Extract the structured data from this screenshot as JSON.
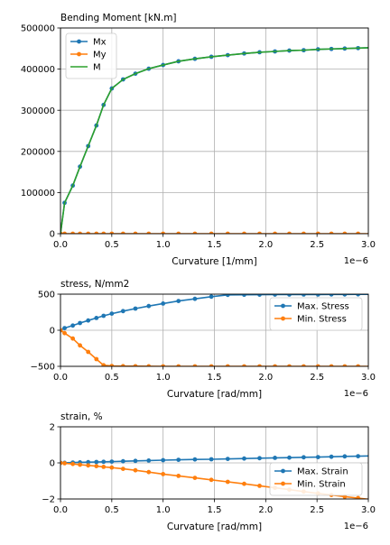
{
  "chart_data": [
    {
      "type": "line",
      "title": "Bending Moment [kN.m]",
      "xlabel": "Curvature [1/mm]",
      "ylabel": "",
      "x_offset_label": "1e−6",
      "xlim": [
        0,
        3.0
      ],
      "ylim": [
        0,
        500000
      ],
      "xticks": [
        0.0,
        0.5,
        1.0,
        1.5,
        2.0,
        2.5,
        3.0
      ],
      "xtick_labels": [
        "0.0",
        "0.5",
        "1.0",
        "1.5",
        "2.0",
        "2.5",
        "3.0"
      ],
      "yticks": [
        0,
        100000,
        200000,
        300000,
        400000,
        500000
      ],
      "ytick_labels": [
        "0",
        "100000",
        "200000",
        "300000",
        "400000",
        "500000"
      ],
      "grid": true,
      "legend": "top-left",
      "series": [
        {
          "name": "Mx",
          "color": "#1f77b4",
          "marker": true,
          "x": [
            0.0,
            0.04,
            0.12,
            0.19,
            0.27,
            0.35,
            0.42,
            0.5,
            0.61,
            0.73,
            0.86,
            1.0,
            1.15,
            1.31,
            1.47,
            1.63,
            1.79,
            1.94,
            2.09,
            2.23,
            2.37,
            2.51,
            2.64,
            2.77,
            2.9,
            3.02
          ],
          "y": [
            0,
            75000,
            117000,
            163000,
            213000,
            263000,
            313000,
            353000,
            375000,
            389000,
            401000,
            410000,
            419000,
            425000,
            430000,
            434000,
            438000,
            441000,
            443000,
            445000,
            446000,
            448000,
            449000,
            450000,
            451000,
            452000
          ]
        },
        {
          "name": "My",
          "color": "#ff7f0e",
          "marker": true,
          "x": [
            0.0,
            0.04,
            0.12,
            0.19,
            0.27,
            0.35,
            0.42,
            0.5,
            0.61,
            0.73,
            0.86,
            1.0,
            1.15,
            1.31,
            1.47,
            1.63,
            1.79,
            1.94,
            2.09,
            2.23,
            2.37,
            2.51,
            2.64,
            2.77,
            2.9,
            3.02
          ],
          "y": [
            0,
            0,
            0,
            0,
            0,
            0,
            0,
            0,
            0,
            0,
            0,
            0,
            0,
            0,
            0,
            0,
            0,
            0,
            0,
            0,
            0,
            0,
            0,
            0,
            0,
            0
          ]
        },
        {
          "name": "M",
          "color": "#2ca02c",
          "marker": false,
          "x": [
            0.0,
            0.04,
            0.12,
            0.19,
            0.27,
            0.35,
            0.42,
            0.5,
            0.61,
            0.73,
            0.86,
            1.0,
            1.15,
            1.31,
            1.47,
            1.63,
            1.79,
            1.94,
            2.09,
            2.23,
            2.37,
            2.51,
            2.64,
            2.77,
            2.9,
            3.02
          ],
          "y": [
            0,
            75000,
            117000,
            163000,
            213000,
            263000,
            313000,
            353000,
            375000,
            389000,
            401000,
            410000,
            419000,
            425000,
            430000,
            434000,
            438000,
            441000,
            443000,
            445000,
            446000,
            448000,
            449000,
            450000,
            451000,
            452000
          ]
        }
      ]
    },
    {
      "type": "line",
      "title": "stress, N/mm2",
      "xlabel": "Curvature [rad/mm]",
      "ylabel": "",
      "x_offset_label": "1e−6",
      "xlim": [
        0,
        3.0
      ],
      "ylim": [
        -500,
        500
      ],
      "xticks": [
        0.0,
        0.5,
        1.0,
        1.5,
        2.0,
        2.5,
        3.0
      ],
      "xtick_labels": [
        "0.0",
        "0.5",
        "1.0",
        "1.5",
        "2.0",
        "2.5",
        "3.0"
      ],
      "yticks": [
        -500,
        0,
        500
      ],
      "ytick_labels": [
        "−500",
        "0",
        "500"
      ],
      "grid": true,
      "legend": "right",
      "series": [
        {
          "name": "Max. Stress",
          "color": "#1f77b4",
          "marker": true,
          "x": [
            0.0,
            0.04,
            0.12,
            0.19,
            0.27,
            0.35,
            0.42,
            0.5,
            0.61,
            0.73,
            0.86,
            1.0,
            1.15,
            1.31,
            1.47,
            1.63,
            1.79,
            1.94,
            2.09,
            2.23,
            2.37,
            2.51,
            2.64,
            2.77,
            2.9,
            3.02
          ],
          "y": [
            0,
            30,
            65,
            100,
            135,
            170,
            200,
            230,
            265,
            300,
            335,
            370,
            405,
            435,
            465,
            490,
            492,
            493,
            494,
            494,
            495,
            495,
            496,
            496,
            497,
            497
          ]
        },
        {
          "name": "Min. Stress",
          "color": "#ff7f0e",
          "marker": true,
          "x": [
            0.0,
            0.04,
            0.12,
            0.19,
            0.27,
            0.35,
            0.42,
            0.5,
            0.61,
            0.73,
            0.86,
            1.0,
            1.15,
            1.31,
            1.47,
            1.63,
            1.79,
            1.94,
            2.09,
            2.23,
            2.37,
            2.51,
            2.64,
            2.77,
            2.9,
            3.02
          ],
          "y": [
            0,
            -40,
            -115,
            -210,
            -300,
            -400,
            -485,
            -495,
            -497,
            -498,
            -499,
            -500,
            -500,
            -500,
            -500,
            -500,
            -500,
            -500,
            -500,
            -500,
            -500,
            -500,
            -500,
            -500,
            -500,
            -500
          ]
        }
      ]
    },
    {
      "type": "line",
      "title": "strain, %",
      "xlabel": "Curvature [rad/mm]",
      "ylabel": "",
      "x_offset_label": "1e−6",
      "xlim": [
        0,
        3.0
      ],
      "ylim": [
        -2,
        2
      ],
      "xticks": [
        0.0,
        0.5,
        1.0,
        1.5,
        2.0,
        2.5,
        3.0
      ],
      "xtick_labels": [
        "0.0",
        "0.5",
        "1.0",
        "1.5",
        "2.0",
        "2.5",
        "3.0"
      ],
      "yticks": [
        -2,
        0,
        2
      ],
      "ytick_labels": [
        "−2",
        "0",
        "2"
      ],
      "grid": true,
      "legend": "bottom-right",
      "series": [
        {
          "name": "Max. Strain",
          "color": "#1f77b4",
          "marker": true,
          "x": [
            0.0,
            0.04,
            0.12,
            0.19,
            0.27,
            0.35,
            0.42,
            0.5,
            0.61,
            0.73,
            0.86,
            1.0,
            1.15,
            1.31,
            1.47,
            1.63,
            1.79,
            1.94,
            2.09,
            2.23,
            2.37,
            2.51,
            2.64,
            2.77,
            2.9,
            3.02
          ],
          "y": [
            0.0,
            0.005,
            0.02,
            0.03,
            0.04,
            0.05,
            0.06,
            0.07,
            0.09,
            0.11,
            0.13,
            0.15,
            0.17,
            0.19,
            0.2,
            0.22,
            0.24,
            0.26,
            0.28,
            0.29,
            0.31,
            0.32,
            0.34,
            0.36,
            0.37,
            0.39
          ]
        },
        {
          "name": "Min. Strain",
          "color": "#ff7f0e",
          "marker": true,
          "x": [
            0.0,
            0.04,
            0.12,
            0.19,
            0.27,
            0.35,
            0.42,
            0.5,
            0.61,
            0.73,
            0.86,
            1.0,
            1.15,
            1.31,
            1.47,
            1.63,
            1.79,
            1.94,
            2.09,
            2.23,
            2.37,
            2.51,
            2.64,
            2.77,
            2.9,
            3.02
          ],
          "y": [
            0.0,
            -0.02,
            -0.06,
            -0.1,
            -0.14,
            -0.18,
            -0.22,
            -0.26,
            -0.33,
            -0.41,
            -0.51,
            -0.62,
            -0.72,
            -0.83,
            -0.94,
            -1.05,
            -1.16,
            -1.27,
            -1.38,
            -1.48,
            -1.59,
            -1.69,
            -1.78,
            -1.87,
            -1.95,
            -2.03
          ]
        }
      ]
    }
  ]
}
